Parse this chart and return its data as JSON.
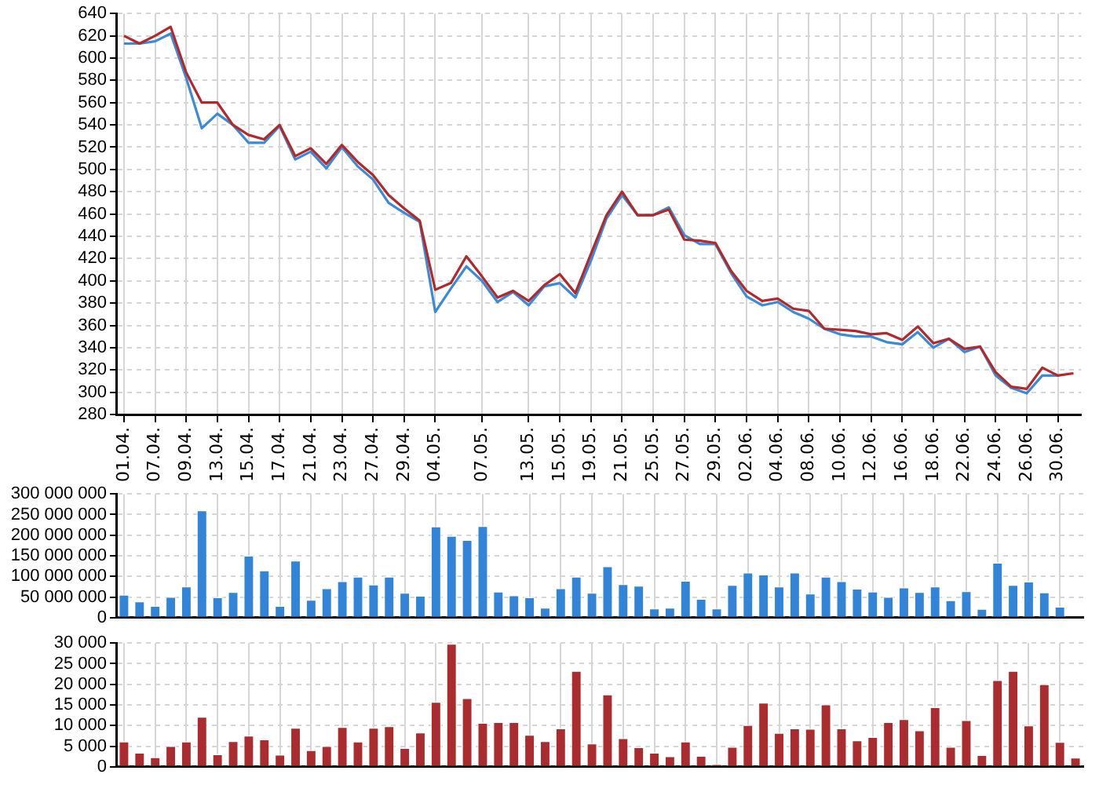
{
  "chart_data": [
    {
      "type": "line",
      "categories": [
        "01.04.",
        null,
        "07.04.",
        null,
        "09.04.",
        null,
        "13.04.",
        null,
        "15.04.",
        null,
        "17.04.",
        null,
        "21.04.",
        null,
        "23.04.",
        null,
        "27.04.",
        null,
        "29.04.",
        null,
        "04.05.",
        null,
        null,
        "07.05.",
        null,
        null,
        "13.05.",
        null,
        "15.05.",
        null,
        "19.05.",
        null,
        "21.05.",
        null,
        "25.05.",
        null,
        "27.05.",
        null,
        "29.05.",
        null,
        "02.06.",
        null,
        "04.06.",
        null,
        "08.06.",
        null,
        "10.06.",
        null,
        "12.06.",
        null,
        "16.06.",
        null,
        "18.06.",
        null,
        "22.06.",
        null,
        "24.06.",
        null,
        "26.06.",
        null,
        "30.06.",
        null
      ],
      "series": [
        {
          "color": "#b3282b",
          "values": [
            620,
            613,
            620,
            628,
            587,
            560,
            560,
            540,
            531,
            527,
            540,
            512,
            519,
            505,
            522,
            507,
            495,
            477,
            465,
            454,
            392,
            398,
            422,
            404,
            385,
            391,
            382,
            396,
            406,
            389,
            424,
            459,
            480,
            459,
            459,
            464,
            437,
            436,
            434,
            409,
            391,
            382,
            384,
            375,
            373,
            357,
            356,
            355,
            352,
            353,
            347,
            359,
            344,
            348,
            339,
            341,
            318,
            305,
            303,
            322,
            315,
            317
          ]
        },
        {
          "color": "#3a8ad8",
          "values": [
            613,
            613,
            615,
            622,
            582,
            537,
            550,
            540,
            524,
            524,
            539,
            509,
            516,
            501,
            520,
            503,
            491,
            470,
            461,
            453,
            372,
            393,
            413,
            400,
            381,
            390,
            378,
            395,
            398,
            385,
            418,
            456,
            477,
            459,
            459,
            466,
            441,
            433,
            433,
            407,
            386,
            378,
            381,
            372,
            366,
            357,
            352,
            350,
            350,
            345,
            343,
            354,
            340,
            348,
            336,
            341,
            315,
            304,
            299,
            315,
            315,
            null
          ]
        }
      ],
      "ylim": [
        280,
        640
      ],
      "yticks": [
        280,
        300,
        320,
        340,
        360,
        380,
        400,
        420,
        440,
        460,
        480,
        500,
        520,
        540,
        560,
        580,
        600,
        620,
        640
      ],
      "grid": true,
      "legend": false,
      "marker": "none",
      "line_style": "solid"
    },
    {
      "type": "bar",
      "categories": [
        "01.04.",
        null,
        "07.04.",
        null,
        "09.04.",
        null,
        "13.04.",
        null,
        "15.04.",
        null,
        "17.04.",
        null,
        "21.04.",
        null,
        "23.04.",
        null,
        "27.04.",
        null,
        "29.04.",
        null,
        "04.05.",
        null,
        null,
        "07.05.",
        null,
        null,
        "13.05.",
        null,
        "15.05.",
        null,
        "19.05.",
        null,
        "21.05.",
        null,
        "25.05.",
        null,
        "27.05.",
        null,
        "29.05.",
        null,
        "02.06.",
        null,
        "04.06.",
        null,
        "08.06.",
        null,
        "10.06.",
        null,
        "12.06.",
        null,
        "16.06.",
        null,
        "18.06.",
        null,
        "22.06.",
        null,
        "24.06.",
        null,
        "26.06.",
        null,
        "30.06.",
        null
      ],
      "series": [
        {
          "color": "#3284d8",
          "values": [
            57000000,
            41000000,
            30000000,
            52000000,
            77000000,
            262000000,
            51000000,
            64000000,
            152000000,
            116000000,
            30000000,
            140000000,
            45000000,
            73000000,
            90000000,
            101000000,
            82000000,
            101000000,
            62000000,
            55000000,
            223000000,
            200000000,
            190000000,
            224000000,
            65000000,
            56000000,
            51000000,
            26000000,
            73000000,
            101000000,
            62000000,
            126000000,
            83000000,
            79000000,
            24000000,
            26000000,
            91000000,
            47000000,
            24000000,
            81000000,
            111000000,
            106000000,
            77000000,
            111000000,
            60000000,
            101000000,
            90000000,
            72000000,
            65000000,
            52000000,
            75000000,
            64000000,
            77000000,
            44000000,
            66000000,
            23000000,
            135000000,
            81000000,
            89000000,
            63000000,
            28000000,
            null
          ]
        }
      ],
      "ylim": [
        0,
        300000000
      ],
      "yticks": [
        {
          "value": 0,
          "label": "0"
        },
        {
          "value": 50000000,
          "label": "50 000 000"
        },
        {
          "value": 100000000,
          "label": "100 000 000"
        },
        {
          "value": 150000000,
          "label": "150 000 000"
        },
        {
          "value": 200000000,
          "label": "200 000 000"
        },
        {
          "value": 250000000,
          "label": "250 000 000"
        },
        {
          "value": 300000000,
          "label": "300 000 000"
        }
      ],
      "grid": true,
      "legend": false,
      "tick_labels": "y"
    },
    {
      "type": "bar",
      "categories": [
        "01.04.",
        null,
        "07.04.",
        null,
        "09.04.",
        null,
        "13.04.",
        null,
        "15.04.",
        null,
        "17.04.",
        null,
        "21.04.",
        null,
        "23.04.",
        null,
        "27.04.",
        null,
        "29.04.",
        null,
        "04.05.",
        null,
        null,
        "07.05.",
        null,
        null,
        "13.05.",
        null,
        "15.05.",
        null,
        "19.05.",
        null,
        "21.05.",
        null,
        "25.05.",
        null,
        "27.05.",
        null,
        "29.05.",
        null,
        "02.06.",
        null,
        "04.06.",
        null,
        "08.06.",
        null,
        "10.06.",
        null,
        "12.06.",
        null,
        "16.06.",
        null,
        "18.06.",
        null,
        "22.06.",
        null,
        "24.06.",
        null,
        "26.06.",
        null,
        "30.06.",
        null
      ],
      "series": [
        {
          "color": "#aa2c2f",
          "values": [
            6300,
            3600,
            2500,
            5200,
            6300,
            12300,
            3200,
            6400,
            7700,
            6800,
            3100,
            9600,
            4200,
            5200,
            9800,
            6300,
            9600,
            10000,
            4700,
            8500,
            15900,
            30000,
            16800,
            10800,
            11000,
            11000,
            7900,
            6400,
            9500,
            23400,
            5800,
            17700,
            7100,
            4900,
            3600,
            2700,
            6300,
            2800,
            700,
            5000,
            10300,
            15700,
            8400,
            9500,
            9400,
            15300,
            9500,
            6600,
            7400,
            11000,
            11700,
            9000,
            14600,
            5000,
            11500,
            3000,
            21200,
            23400,
            10200,
            20200,
            6200,
            2400
          ]
        }
      ],
      "ylim": [
        0,
        30000
      ],
      "yticks": [
        {
          "value": 0,
          "label": "0"
        },
        {
          "value": 5000,
          "label": "5 000"
        },
        {
          "value": 10000,
          "label": "10 000"
        },
        {
          "value": 15000,
          "label": "15 000"
        },
        {
          "value": 20000,
          "label": "20 000"
        },
        {
          "value": 25000,
          "label": "25 000"
        },
        {
          "value": 30000,
          "label": "30 000"
        }
      ],
      "grid": true,
      "legend": false,
      "tick_labels": "y"
    }
  ]
}
